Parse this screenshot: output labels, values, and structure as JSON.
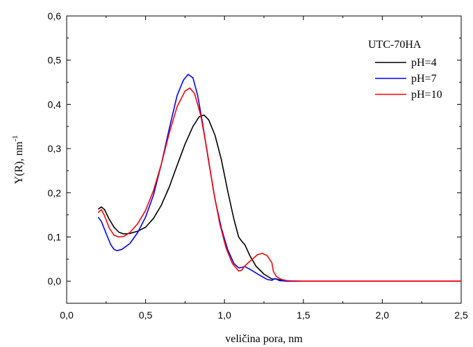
{
  "chart_data": {
    "type": "line",
    "xlabel": "veličina pora, nm",
    "ylabel_main": "Y(R), nm",
    "ylabel_sup": "-1",
    "xlim": [
      0.0,
      2.5
    ],
    "ylim": [
      -0.05,
      0.6
    ],
    "x_ticks": [
      0.0,
      0.5,
      1.0,
      1.5,
      2.0,
      2.5
    ],
    "x_tick_labels": [
      "0,0",
      "0,5",
      "1,0",
      "1,5",
      "2,0",
      "2,5"
    ],
    "y_ticks": [
      0.0,
      0.1,
      0.2,
      0.3,
      0.4,
      0.5,
      0.6
    ],
    "y_tick_labels": [
      "0,0",
      "0,1",
      "0,2",
      "0,3",
      "0,4",
      "0,5",
      "0,6"
    ],
    "grid": false,
    "legend_title": "UTC-70HA",
    "legend_position": "top-right",
    "series": [
      {
        "name": "pH=4",
        "color": "#000000",
        "points": [
          [
            0.2,
            0.163
          ],
          [
            0.22,
            0.168
          ],
          [
            0.24,
            0.162
          ],
          [
            0.27,
            0.14
          ],
          [
            0.3,
            0.122
          ],
          [
            0.33,
            0.111
          ],
          [
            0.36,
            0.107
          ],
          [
            0.4,
            0.108
          ],
          [
            0.45,
            0.113
          ],
          [
            0.5,
            0.122
          ],
          [
            0.55,
            0.142
          ],
          [
            0.6,
            0.172
          ],
          [
            0.65,
            0.213
          ],
          [
            0.7,
            0.262
          ],
          [
            0.75,
            0.31
          ],
          [
            0.8,
            0.35
          ],
          [
            0.84,
            0.372
          ],
          [
            0.87,
            0.376
          ],
          [
            0.9,
            0.365
          ],
          [
            0.94,
            0.33
          ],
          [
            0.98,
            0.275
          ],
          [
            1.02,
            0.205
          ],
          [
            1.06,
            0.14
          ],
          [
            1.09,
            0.1
          ],
          [
            1.11,
            0.09
          ],
          [
            1.13,
            0.082
          ],
          [
            1.16,
            0.058
          ],
          [
            1.2,
            0.034
          ],
          [
            1.25,
            0.016
          ],
          [
            1.3,
            0.005
          ],
          [
            1.33,
            0.005
          ],
          [
            1.36,
            0.002
          ],
          [
            1.4,
            0.001
          ],
          [
            1.45,
            0.0
          ],
          [
            1.5,
            0.0
          ],
          [
            2.5,
            0.0
          ]
        ]
      },
      {
        "name": "pH=7",
        "color": "#0000ff",
        "points": [
          [
            0.2,
            0.145
          ],
          [
            0.22,
            0.135
          ],
          [
            0.25,
            0.108
          ],
          [
            0.28,
            0.082
          ],
          [
            0.3,
            0.072
          ],
          [
            0.32,
            0.069
          ],
          [
            0.35,
            0.072
          ],
          [
            0.4,
            0.085
          ],
          [
            0.45,
            0.11
          ],
          [
            0.5,
            0.145
          ],
          [
            0.55,
            0.195
          ],
          [
            0.6,
            0.265
          ],
          [
            0.65,
            0.345
          ],
          [
            0.7,
            0.42
          ],
          [
            0.74,
            0.455
          ],
          [
            0.77,
            0.468
          ],
          [
            0.8,
            0.46
          ],
          [
            0.83,
            0.42
          ],
          [
            0.86,
            0.36
          ],
          [
            0.9,
            0.27
          ],
          [
            0.94,
            0.185
          ],
          [
            0.98,
            0.12
          ],
          [
            1.02,
            0.072
          ],
          [
            1.06,
            0.04
          ],
          [
            1.09,
            0.03
          ],
          [
            1.11,
            0.031
          ],
          [
            1.13,
            0.033
          ],
          [
            1.17,
            0.025
          ],
          [
            1.22,
            0.014
          ],
          [
            1.27,
            0.004
          ],
          [
            1.3,
            0.002
          ],
          [
            1.32,
            0.006
          ],
          [
            1.35,
            0.001
          ],
          [
            1.4,
            0.0
          ],
          [
            1.5,
            0.0
          ],
          [
            2.5,
            0.0
          ]
        ]
      },
      {
        "name": "pH=10",
        "color": "#ff0000",
        "points": [
          [
            0.2,
            0.155
          ],
          [
            0.22,
            0.162
          ],
          [
            0.24,
            0.148
          ],
          [
            0.27,
            0.12
          ],
          [
            0.3,
            0.104
          ],
          [
            0.33,
            0.1
          ],
          [
            0.36,
            0.101
          ],
          [
            0.4,
            0.11
          ],
          [
            0.45,
            0.13
          ],
          [
            0.5,
            0.16
          ],
          [
            0.55,
            0.205
          ],
          [
            0.6,
            0.265
          ],
          [
            0.65,
            0.335
          ],
          [
            0.7,
            0.395
          ],
          [
            0.75,
            0.43
          ],
          [
            0.78,
            0.437
          ],
          [
            0.81,
            0.425
          ],
          [
            0.85,
            0.375
          ],
          [
            0.89,
            0.295
          ],
          [
            0.93,
            0.205
          ],
          [
            0.97,
            0.13
          ],
          [
            1.01,
            0.075
          ],
          [
            1.05,
            0.04
          ],
          [
            1.09,
            0.023
          ],
          [
            1.11,
            0.025
          ],
          [
            1.13,
            0.035
          ],
          [
            1.17,
            0.048
          ],
          [
            1.21,
            0.06
          ],
          [
            1.24,
            0.063
          ],
          [
            1.27,
            0.058
          ],
          [
            1.3,
            0.042
          ],
          [
            1.31,
            0.022
          ],
          [
            1.33,
            0.01
          ],
          [
            1.36,
            0.004
          ],
          [
            1.4,
            0.001
          ],
          [
            1.5,
            0.0
          ],
          [
            2.5,
            0.0
          ]
        ]
      }
    ]
  }
}
